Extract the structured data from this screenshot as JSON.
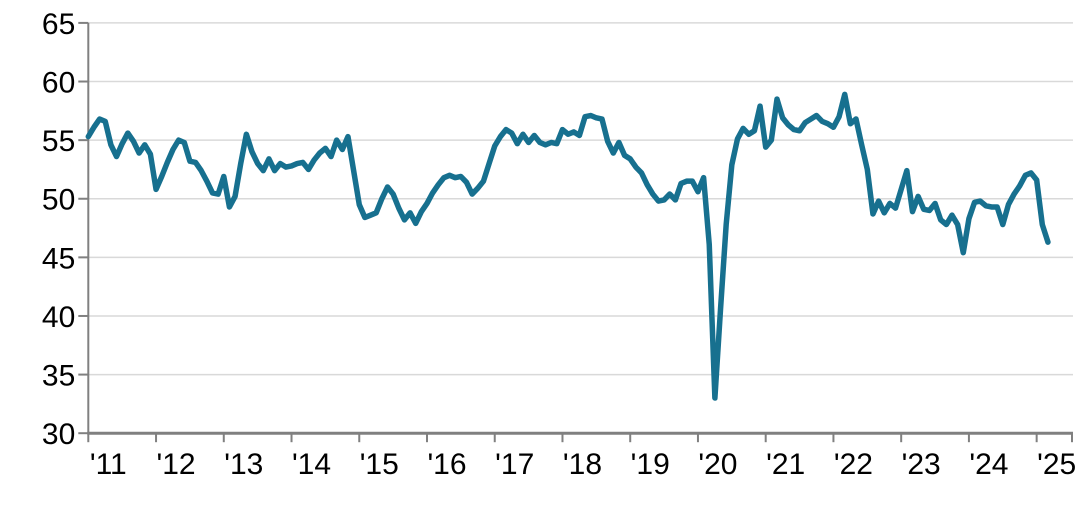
{
  "chart_data": {
    "type": "line",
    "title": "",
    "xlabel": "",
    "ylabel": "",
    "x_start": "2011-01",
    "x_interval": "monthly",
    "x_tick_labels": [
      "'11",
      "'12",
      "'13",
      "'14",
      "'15",
      "'16",
      "'17",
      "'18",
      "'19",
      "'20",
      "'21",
      "'22",
      "'23",
      "'24",
      "'25"
    ],
    "y_tick_labels": [
      "65",
      "60",
      "55",
      "50",
      "45",
      "40",
      "35",
      "30"
    ],
    "ylim": [
      30,
      65
    ],
    "grid": "horizontal",
    "legend": "none",
    "line_color": "#17708f",
    "axis_color": "#808080",
    "gridline_color": "#d9d9d9",
    "label_color": "#000000",
    "values": [
      55.3,
      56.1,
      56.8,
      56.6,
      54.6,
      53.6,
      54.7,
      55.6,
      54.9,
      53.9,
      54.6,
      53.8,
      50.8,
      51.9,
      53.1,
      54.2,
      55.0,
      54.8,
      53.2,
      53.1,
      52.4,
      51.5,
      50.5,
      50.4,
      51.9,
      49.3,
      50.2,
      53.0,
      55.5,
      54.0,
      53.0,
      52.4,
      53.4,
      52.4,
      53.0,
      52.7,
      52.8,
      53.0,
      53.1,
      52.5,
      53.3,
      53.9,
      54.3,
      53.6,
      55.0,
      54.2,
      55.3,
      52.4,
      49.5,
      48.4,
      48.6,
      48.8,
      50.0,
      51.0,
      50.4,
      49.2,
      48.2,
      48.8,
      47.9,
      48.9,
      49.6,
      50.5,
      51.2,
      51.8,
      52.0,
      51.8,
      51.9,
      51.4,
      50.4,
      50.9,
      51.5,
      53.0,
      54.5,
      55.3,
      55.9,
      55.6,
      54.7,
      55.5,
      54.8,
      55.4,
      54.8,
      54.6,
      54.8,
      54.7,
      55.9,
      55.5,
      55.7,
      55.4,
      57.0,
      57.1,
      56.9,
      56.8,
      54.9,
      53.9,
      54.8,
      53.7,
      53.4,
      52.7,
      52.2,
      51.2,
      50.4,
      49.8,
      49.9,
      50.4,
      49.9,
      51.3,
      51.5,
      51.5,
      50.6,
      51.8,
      46.1,
      33.0,
      40.6,
      47.8,
      52.9,
      55.1,
      56.0,
      55.5,
      55.8,
      57.9,
      54.4,
      55.0,
      58.5,
      56.9,
      56.3,
      55.9,
      55.8,
      56.5,
      56.8,
      57.1,
      56.6,
      56.4,
      56.1,
      57.0,
      58.9,
      56.4,
      56.8,
      54.6,
      52.5,
      48.7,
      49.8,
      48.8,
      49.6,
      49.2,
      50.8,
      52.4,
      48.9,
      50.2,
      49.1,
      49.0,
      49.6,
      48.2,
      47.8,
      48.6,
      47.8,
      45.4,
      48.3,
      49.7,
      49.8,
      49.4,
      49.3,
      49.3,
      47.8,
      49.5,
      50.4,
      51.1,
      52.0,
      52.2,
      51.6,
      47.8,
      46.3
    ]
  }
}
